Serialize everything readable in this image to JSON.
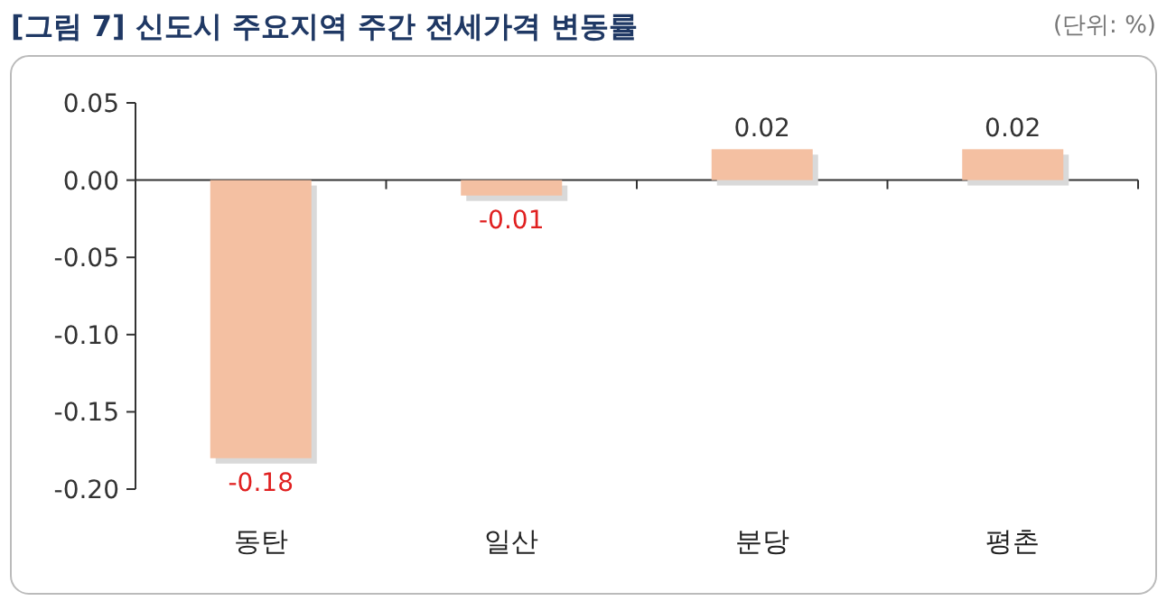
{
  "chart_data": {
    "type": "bar",
    "title": "[그림 7] 신도시 주요지역 주간 전세가격 변동률",
    "subtitle": "(단위: %)",
    "categories": [
      "동탄",
      "일산",
      "분당",
      "평촌"
    ],
    "values": [
      -0.18,
      -0.01,
      0.02,
      0.02
    ],
    "color": "#f4c0a2",
    "ylim": [
      -0.2,
      0.05
    ],
    "yticks": [
      {
        "value": 0.05,
        "label": "0.05"
      },
      {
        "value": 0,
        "label": "0.00"
      },
      {
        "value": -0.05,
        "label": "-0.05"
      },
      {
        "value": -0.1,
        "label": "-0.10"
      },
      {
        "value": -0.15,
        "label": "-0.15"
      },
      {
        "value": -0.2,
        "label": "-0.20"
      }
    ],
    "data_labels": true
  }
}
